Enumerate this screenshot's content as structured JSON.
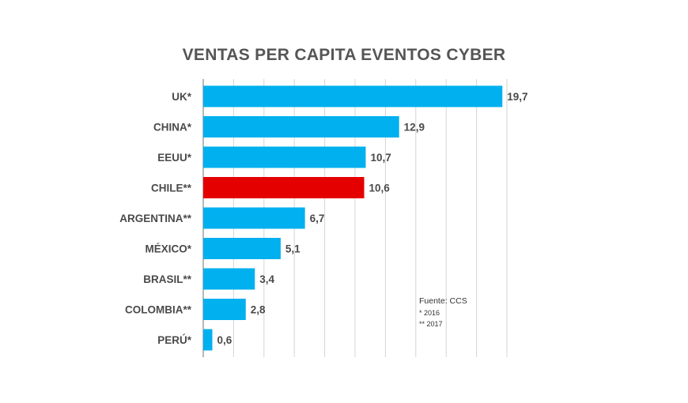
{
  "chart_data": {
    "type": "bar",
    "orientation": "horizontal",
    "title": "VENTAS PER CAPITA EVENTOS CYBER",
    "categories": [
      "UK*",
      "CHINA*",
      "EEUU*",
      "CHILE**",
      "ARGENTINA**",
      "MÉXICO*",
      "BRASIL**",
      "COLOMBIA**",
      "PERÚ*"
    ],
    "values": [
      19.7,
      12.9,
      10.7,
      10.6,
      6.7,
      5.1,
      3.4,
      2.8,
      0.6
    ],
    "value_labels": [
      "19,7",
      "12,9",
      "10,7",
      "10,6",
      "6,7",
      "5,1",
      "3,4",
      "2,8",
      "0,6"
    ],
    "highlight_category": "CHILE**",
    "colors": {
      "default": "#00b0ef",
      "highlight": "#e50000"
    },
    "xlim": [
      0,
      20
    ],
    "grid": true,
    "xlabel": "",
    "ylabel": ""
  },
  "notes": {
    "source": "Fuente: CCS",
    "single_star": "*   2016",
    "double_star": "** 2017"
  }
}
